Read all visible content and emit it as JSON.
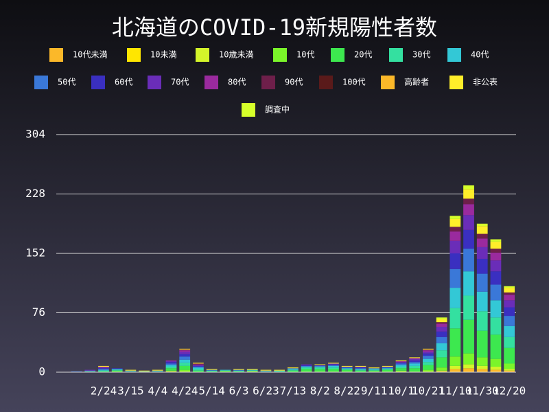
{
  "chart_data": {
    "type": "stacked_bar",
    "title": "北海道のCOVID-19新規陽性者数",
    "categories": [
      null,
      null,
      null,
      "2/24",
      null,
      "3/15",
      null,
      "4/4",
      null,
      "4/24",
      null,
      "5/14",
      null,
      "6/3",
      null,
      "6/23",
      null,
      "7/13",
      null,
      "8/2",
      null,
      "8/22",
      null,
      "9/11",
      null,
      "10/1",
      null,
      "10/21",
      null,
      "11/10",
      null,
      "11/30",
      null,
      "12/20"
    ],
    "ylim": [
      0,
      304
    ],
    "yticks": [
      0,
      76,
      152,
      228,
      304
    ],
    "grid": true,
    "series": [
      {
        "name": "10代未満",
        "color": "#fbb829",
        "values": [
          0,
          0,
          0,
          0,
          0,
          0,
          0,
          0,
          1,
          0,
          0,
          0,
          0,
          0,
          0,
          0,
          0,
          0,
          0,
          0,
          0,
          0,
          0,
          0,
          0,
          0,
          0,
          0,
          1,
          4,
          5,
          4,
          3,
          2
        ]
      },
      {
        "name": "10未満",
        "color": "#ffe600",
        "values": [
          0,
          0,
          0,
          0,
          0,
          0,
          0,
          0,
          0,
          0,
          0,
          0,
          0,
          0,
          0,
          0,
          0,
          0,
          0,
          0,
          0,
          0,
          0,
          0,
          0,
          0,
          0,
          0,
          0,
          0,
          0,
          0,
          0,
          0
        ]
      },
      {
        "name": "10歳未満",
        "color": "#d4f52a",
        "values": [
          0,
          0,
          0,
          0,
          0,
          0,
          0,
          0,
          0,
          1,
          0,
          0,
          0,
          0,
          1,
          0,
          0,
          0,
          0,
          0,
          0,
          0,
          0,
          0,
          0,
          1,
          0,
          1,
          1,
          4,
          5,
          4,
          4,
          2
        ]
      },
      {
        "name": "10代",
        "color": "#7bf52a",
        "values": [
          0,
          0,
          0,
          0,
          1,
          0,
          0,
          0,
          1,
          2,
          0,
          0,
          1,
          0,
          0,
          0,
          0,
          0,
          1,
          1,
          1,
          1,
          0,
          1,
          1,
          1,
          1,
          2,
          4,
          12,
          14,
          11,
          10,
          7
        ]
      },
      {
        "name": "20代",
        "color": "#3de84f",
        "values": [
          0,
          0,
          1,
          1,
          1,
          1,
          0,
          1,
          3,
          5,
          2,
          1,
          1,
          1,
          1,
          1,
          1,
          2,
          3,
          3,
          3,
          2,
          2,
          1,
          2,
          3,
          4,
          6,
          13,
          36,
          43,
          34,
          31,
          20
        ]
      },
      {
        "name": "30代",
        "color": "#34e0a0",
        "values": [
          0,
          0,
          0,
          1,
          1,
          0,
          0,
          0,
          2,
          4,
          2,
          1,
          0,
          1,
          0,
          0,
          0,
          1,
          2,
          2,
          2,
          1,
          1,
          1,
          1,
          2,
          3,
          4,
          9,
          26,
          31,
          25,
          22,
          14
        ]
      },
      {
        "name": "40代",
        "color": "#33c8d6",
        "values": [
          0,
          0,
          0,
          1,
          1,
          0,
          1,
          0,
          2,
          4,
          2,
          0,
          1,
          0,
          1,
          0,
          1,
          1,
          1,
          1,
          2,
          1,
          1,
          1,
          1,
          2,
          3,
          4,
          9,
          26,
          31,
          25,
          22,
          14
        ]
      },
      {
        "name": "50代",
        "color": "#3a78d8",
        "values": [
          0,
          1,
          1,
          1,
          0,
          1,
          0,
          1,
          2,
          4,
          1,
          1,
          0,
          1,
          0,
          1,
          0,
          1,
          1,
          1,
          1,
          1,
          1,
          1,
          1,
          2,
          2,
          4,
          8,
          24,
          29,
          23,
          20,
          13
        ]
      },
      {
        "name": "60代",
        "color": "#3a2fc0",
        "values": [
          0,
          0,
          0,
          1,
          1,
          0,
          0,
          0,
          2,
          3,
          1,
          0,
          0,
          0,
          0,
          0,
          0,
          0,
          1,
          1,
          1,
          1,
          1,
          0,
          1,
          1,
          2,
          3,
          7,
          20,
          24,
          19,
          17,
          11
        ]
      },
      {
        "name": "70代",
        "color": "#6a2db8",
        "values": [
          0,
          0,
          1,
          1,
          0,
          0,
          0,
          0,
          1,
          3,
          1,
          0,
          0,
          0,
          0,
          0,
          0,
          0,
          1,
          0,
          1,
          0,
          1,
          0,
          0,
          1,
          2,
          2,
          6,
          16,
          19,
          15,
          14,
          9
        ]
      },
      {
        "name": "80代",
        "color": "#9a2a9e",
        "values": [
          0,
          0,
          0,
          1,
          0,
          0,
          0,
          0,
          1,
          2,
          1,
          0,
          0,
          0,
          0,
          0,
          0,
          0,
          0,
          0,
          0,
          0,
          0,
          0,
          0,
          1,
          1,
          2,
          4,
          12,
          14,
          11,
          10,
          7
        ]
      },
      {
        "name": "90代",
        "color": "#6e1f4a",
        "values": [
          0,
          0,
          0,
          0,
          0,
          0,
          0,
          0,
          0,
          1,
          1,
          0,
          0,
          0,
          0,
          0,
          0,
          0,
          0,
          0,
          0,
          0,
          0,
          0,
          0,
          0,
          0,
          1,
          2,
          6,
          7,
          6,
          5,
          3
        ]
      },
      {
        "name": "100代",
        "color": "#5a1a1a",
        "values": [
          0,
          0,
          0,
          0,
          0,
          0,
          0,
          0,
          0,
          0,
          0,
          0,
          0,
          0,
          0,
          0,
          0,
          0,
          0,
          0,
          0,
          0,
          0,
          0,
          0,
          0,
          0,
          0,
          0,
          0,
          0,
          0,
          0,
          0
        ]
      },
      {
        "name": "高齢者",
        "color": "#fbb829",
        "values": [
          0,
          0,
          0,
          0,
          0,
          0,
          0,
          0,
          0,
          0,
          0,
          0,
          0,
          0,
          0,
          0,
          0,
          0,
          0,
          0,
          0,
          0,
          0,
          0,
          0,
          0,
          0,
          0,
          0,
          0,
          0,
          0,
          0,
          0
        ]
      },
      {
        "name": "非公表",
        "color": "#ffee2a",
        "values": [
          0,
          0,
          0,
          1,
          0,
          1,
          1,
          1,
          0,
          1,
          1,
          1,
          0,
          1,
          1,
          1,
          1,
          1,
          0,
          1,
          1,
          1,
          1,
          1,
          1,
          1,
          1,
          1,
          4,
          10,
          12,
          10,
          9,
          6
        ]
      },
      {
        "name": "調査中",
        "color": "#d6ff2a",
        "values": [
          0,
          0,
          0,
          0,
          0,
          0,
          0,
          0,
          0,
          0,
          0,
          0,
          0,
          0,
          0,
          0,
          0,
          0,
          0,
          0,
          0,
          0,
          0,
          0,
          0,
          0,
          0,
          0,
          2,
          4,
          5,
          3,
          3,
          2
        ]
      }
    ]
  }
}
